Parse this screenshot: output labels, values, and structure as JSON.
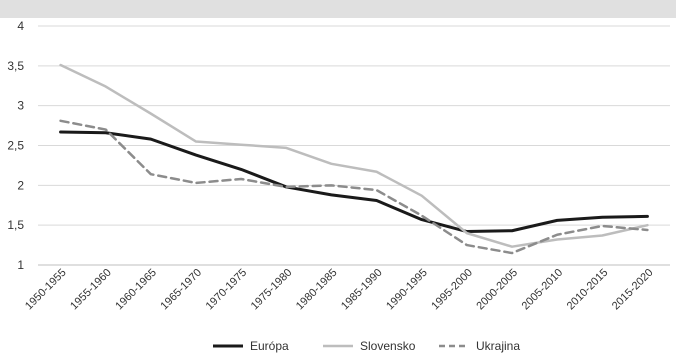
{
  "chart_data": {
    "type": "line",
    "title": "",
    "xlabel": "",
    "ylabel": "",
    "ylim": [
      1,
      4
    ],
    "y_ticks": [
      "1",
      "1,5",
      "2",
      "2,5",
      "3",
      "3,5",
      "4"
    ],
    "y_tick_values": [
      1,
      1.5,
      2,
      2.5,
      3,
      3.5,
      4
    ],
    "grid": "horizontal",
    "legend_position": "bottom",
    "categories": [
      "1950-1955",
      "1955-1960",
      "1960-1965",
      "1965-1970",
      "1970-1975",
      "1975-1980",
      "1980-1985",
      "1985-1990",
      "1990-1995",
      "1995-2000",
      "2000-2005",
      "2005-2010",
      "2010-2015",
      "2015-2020"
    ],
    "series": [
      {
        "name": "Európa",
        "color": "#1a1a1a",
        "dash": "solid",
        "values": [
          2.67,
          2.66,
          2.58,
          2.38,
          2.2,
          1.98,
          1.88,
          1.81,
          1.57,
          1.42,
          1.43,
          1.56,
          1.6,
          1.61
        ]
      },
      {
        "name": "Slovensko",
        "color": "#bdbdbd",
        "dash": "solid",
        "values": [
          3.51,
          3.24,
          2.9,
          2.55,
          2.51,
          2.47,
          2.27,
          2.17,
          1.87,
          1.4,
          1.23,
          1.32,
          1.37,
          1.5
        ]
      },
      {
        "name": "Ukrajina",
        "color": "#8c8c8c",
        "dash": "dashed",
        "values": [
          2.81,
          2.7,
          2.14,
          2.03,
          2.08,
          1.98,
          2.0,
          1.94,
          1.62,
          1.25,
          1.15,
          1.38,
          1.49,
          1.44
        ]
      }
    ]
  }
}
